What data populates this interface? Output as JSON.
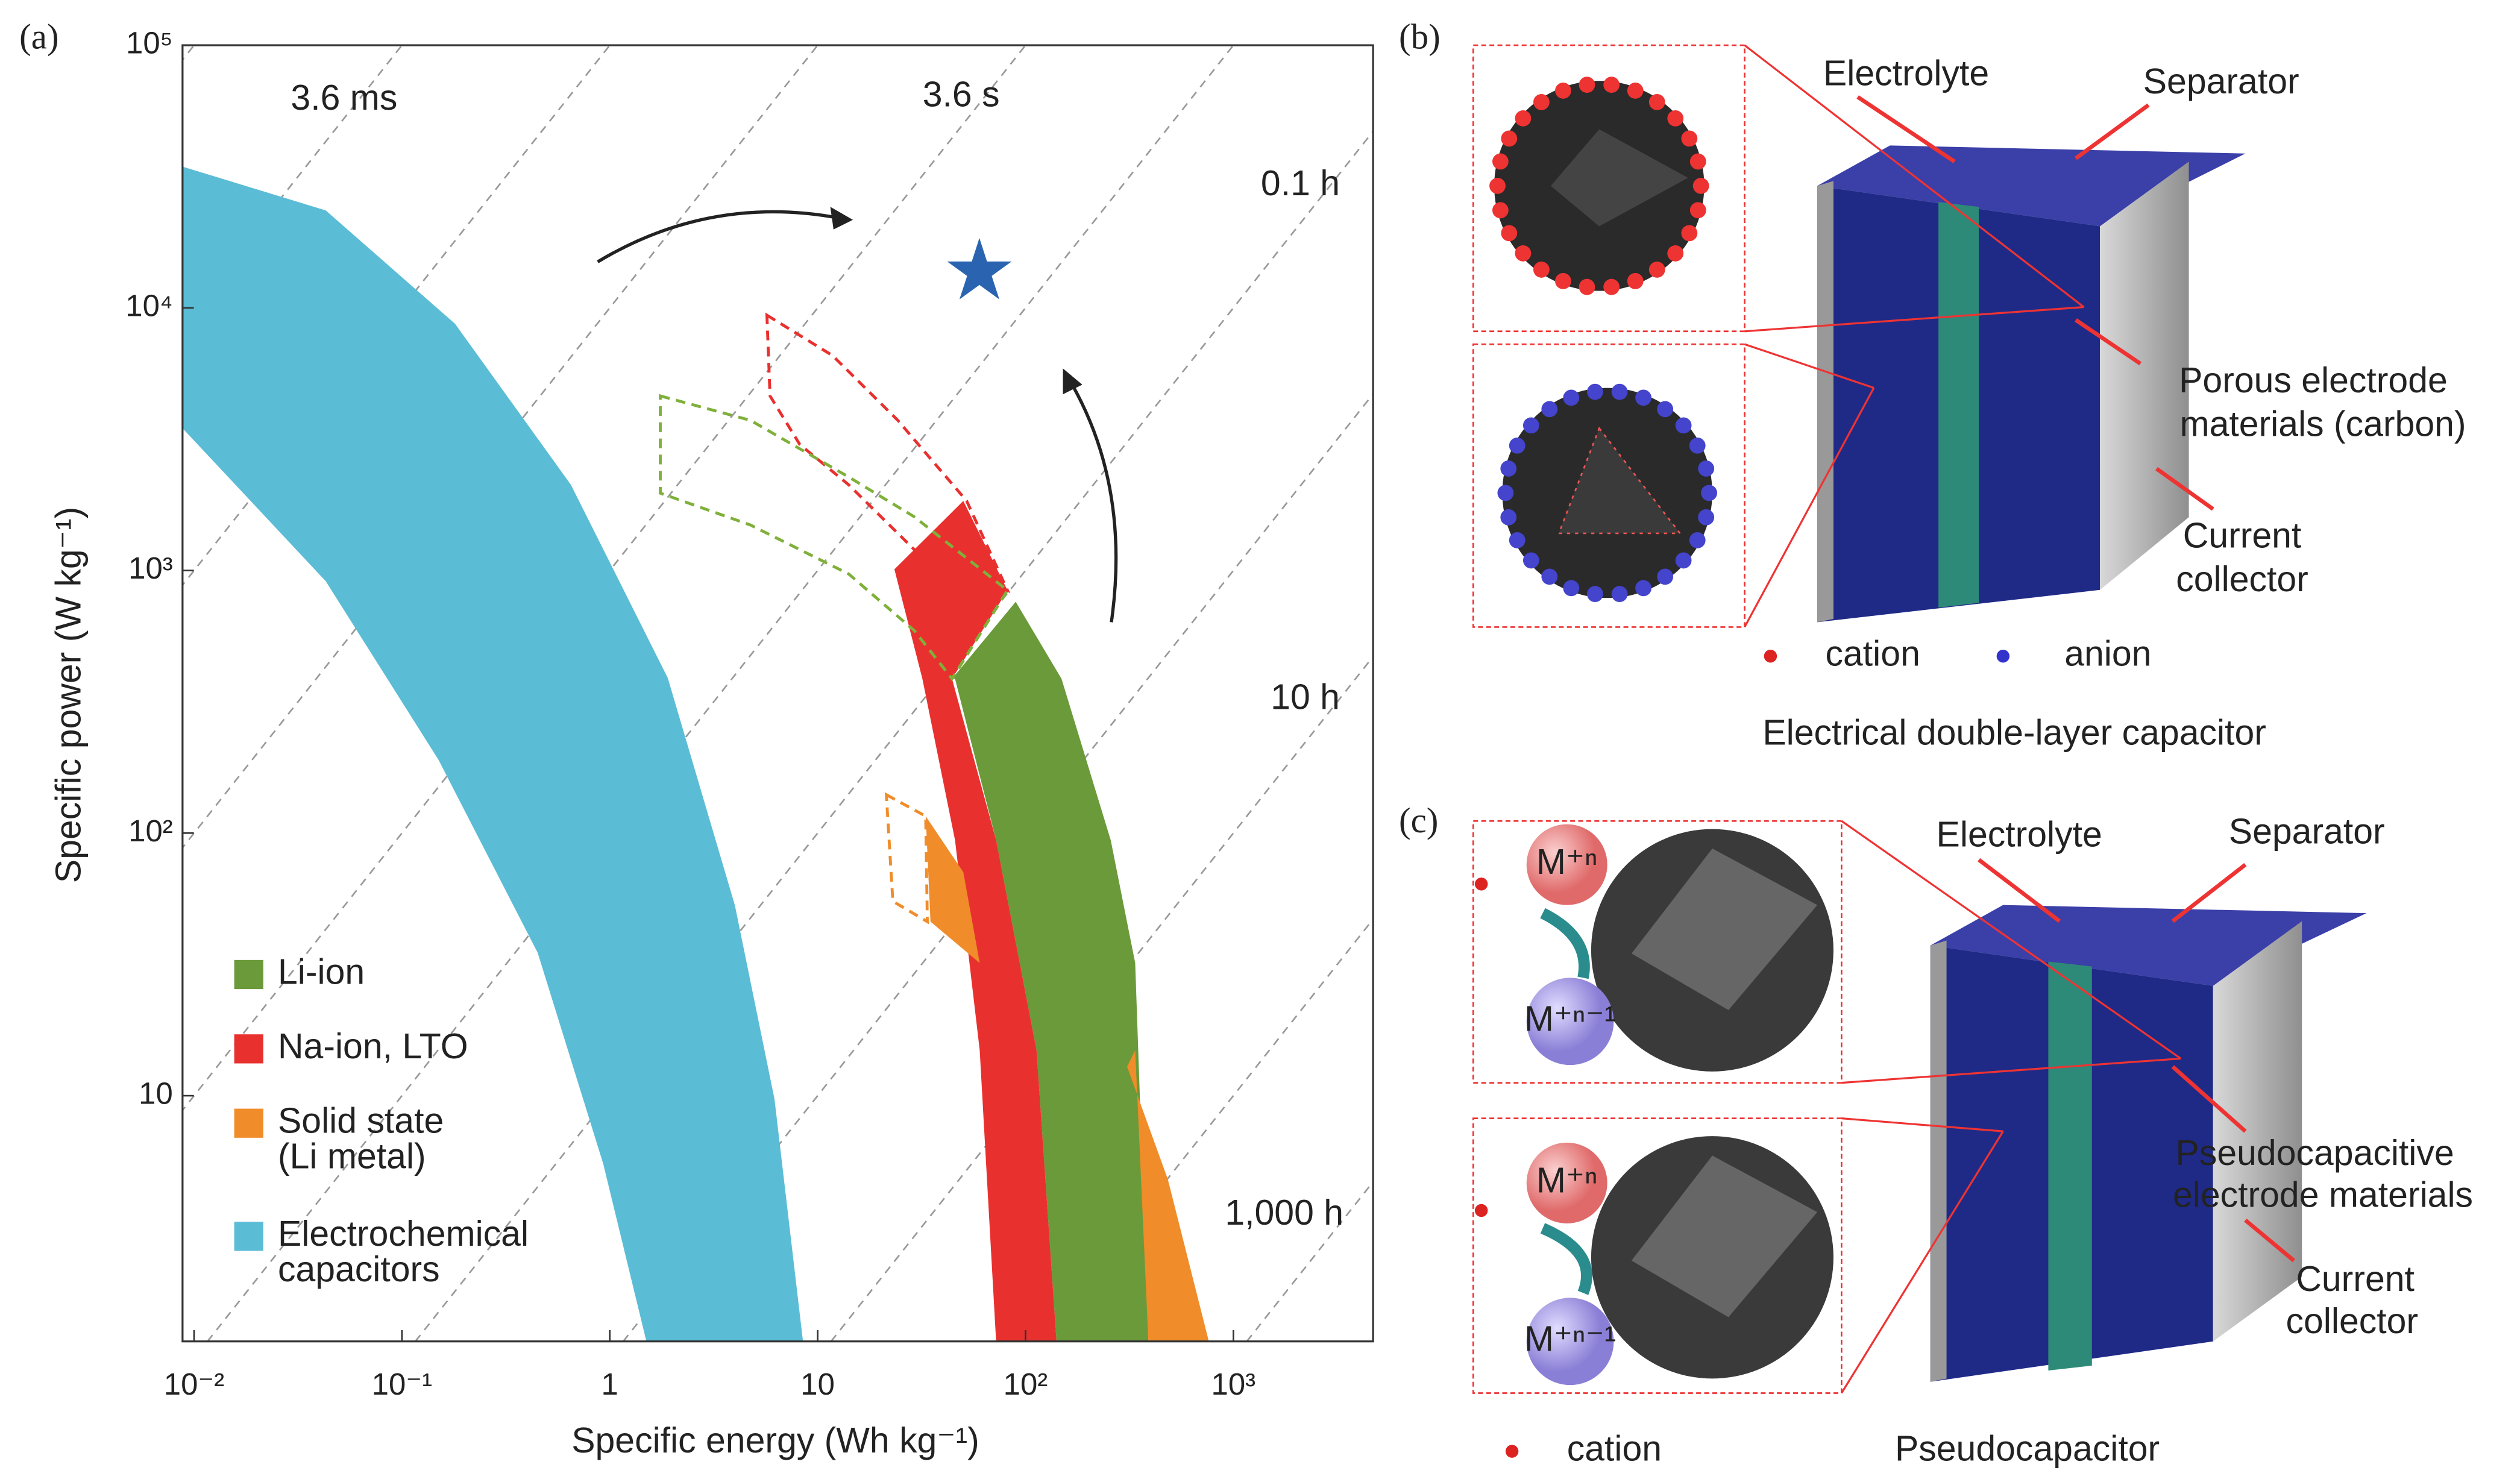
{
  "chart_data": {
    "type": "region",
    "panel": "(a)",
    "x_label": "Specific energy (Wh kg⁻¹)",
    "y_label": "Specific power (W kg⁻¹)",
    "log_x": true,
    "log_y": true,
    "xlim": [
      0.0088,
      4700
    ],
    "ylim": [
      1.16,
      100000
    ],
    "xticks": [
      {
        "value": 0.01,
        "label": "10⁻²"
      },
      {
        "value": 0.1,
        "label": "10⁻¹"
      },
      1,
      10,
      {
        "value": 100,
        "label": "10²"
      },
      {
        "value": 1000,
        "label": "10³"
      }
    ],
    "yticks": [
      10,
      {
        "value": 100,
        "label": "10²"
      },
      {
        "value": 1000,
        "label": "10³"
      },
      {
        "value": 10000,
        "label": "10⁴"
      },
      {
        "value": 100000,
        "label": "10⁵"
      }
    ],
    "time_lines": [
      1e-07,
      {
        "value": 1e-06,
        "label": "3.6 ms"
      },
      1e-05,
      0.0001,
      {
        "value": 0.001,
        "label": "3.6 s"
      },
      0.01,
      {
        "value": 0.1,
        "label": "0.1 h"
      },
      1,
      {
        "value": 10,
        "label": "10 h"
      },
      100,
      {
        "value": 1000,
        "label": "1,000 h"
      }
    ],
    "regions": [
      {
        "name": [
          "Li-ion"
        ],
        "color": "#6a9a3a",
        "x": [
          44.3,
          89.7,
          149,
          257,
          337,
          390,
          141,
          113,
          72.2,
          45.8
        ],
        "y": [
          387,
          760,
          387,
          94,
          32,
          1.16,
          1.16,
          14.9,
          94,
          387
        ]
      },
      {
        "name": [
          "Na-ion, LTO"
        ],
        "color": "#e8312f",
        "x": [
          23.4,
          31.9,
          45.8,
          60.2,
          72.2,
          141,
          113,
          72.2,
          44.3,
          81.9,
          50.2
        ],
        "y": [
          1010,
          387,
          94,
          14.9,
          1.16,
          1.16,
          14.9,
          94,
          387,
          840,
          1840
        ]
      },
      {
        "name": [
          "Solid state",
          "(Li metal)"
        ],
        "color": "#f08c2a",
        "x": [
          33.1,
          50.2,
          60.2,
          34.9
        ],
        "y": [
          116,
          71,
          32,
          46
        ]
      },
      {
        "name": [
          "Electrochemical",
          "capacitors"
        ],
        "color": "#5bbcd6",
        "x": [
          0.0088,
          0.043,
          0.18,
          0.65,
          1.9,
          4.0,
          6.2,
          8.5,
          1.5,
          0.93,
          0.45,
          0.15,
          0.043,
          0.0088
        ],
        "y": [
          34500,
          23500,
          8700,
          2120,
          390,
          53,
          9.7,
          1.16,
          1.16,
          5.5,
          35,
          190,
          910,
          3480
        ]
      }
    ],
    "extra_regions": [
      {
        "color": "#f08c2a",
        "x": [
          308,
          484,
          762,
          390,
          337
        ],
        "y": [
          12.9,
          4.8,
          1.16,
          1.16,
          14.9
        ]
      }
    ],
    "outlines": [
      {
        "color": "#e8312f",
        "x": [
          5.7,
          11.8,
          24.3,
          52.1,
          81.9,
          29.2,
          14.1,
          8.2,
          5.9
        ],
        "y": [
          9380,
          6580,
          3730,
          1840,
          840,
          1200,
          2120,
          3020,
          4620
        ]
      },
      {
        "color": "#7fb03a",
        "x": [
          1.75,
          4.75,
          14.1,
          29.2,
          81.9,
          44.3,
          29.2,
          14.1,
          4.75,
          1.75
        ],
        "y": [
          4620,
          3730,
          2270,
          1600,
          840,
          387,
          590,
          970,
          1490,
          1970
        ]
      },
      {
        "color": "#f08c2a",
        "x": [
          21.4,
          33.1,
          33.7,
          23
        ],
        "y": [
          140,
          116,
          46,
          55
        ]
      }
    ],
    "target": {
      "x": 60,
      "y": 13700,
      "color": "#2a64b0"
    }
  },
  "panel_b": {
    "label": "(b)",
    "electrolyte": "Electrolyte",
    "separator": "Separator",
    "electrode": [
      "Porous electrode",
      "materials (carbon)"
    ],
    "collector": [
      "Current",
      "collector"
    ],
    "cation": "cation",
    "anion": "anion",
    "title": "Electrical double-layer capacitor"
  },
  "panel_c": {
    "label": "(c)",
    "electrolyte": "Electrolyte",
    "separator": "Separator",
    "electrode": [
      "Pseudocapacitive",
      "electrode materials"
    ],
    "collector": [
      "Current",
      "collector"
    ],
    "ion_top": "M⁺ⁿ",
    "ion_bottom": "M⁺ⁿ⁻¹",
    "cation": "cation",
    "title": "Pseudocapacitor"
  }
}
